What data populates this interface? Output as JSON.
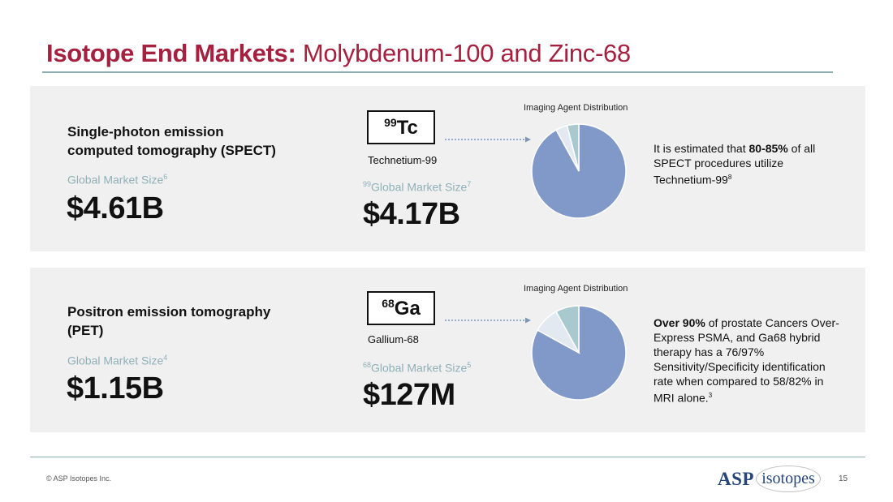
{
  "title": {
    "bold": "Isotope End Markets:",
    "rest": "Molybdenum-100 and Zinc-68"
  },
  "rows": [
    {
      "heading_line1": "Single-photon emission",
      "heading_line2": "computed tomography (SPECT)",
      "global_label": "Global Market Size",
      "global_ref": "6",
      "global_value": "$4.61B",
      "isotope_mass": "99",
      "isotope_symbol": "Tc",
      "isotope_name": "Technetium-99",
      "isotope_market_label": "Global Market Size",
      "isotope_market_ref": "7",
      "isotope_market_value": "$4.17B",
      "chart_title": "Imaging Agent Distribution",
      "note_pre": "It is estimated that ",
      "note_bold": "80-85%",
      "note_post": " of all SPECT procedures utilize Technetium-99",
      "note_ref": "8"
    },
    {
      "heading_line1": "Positron emission tomography",
      "heading_line2": "(PET)",
      "global_label": "Global Market Size",
      "global_ref": "4",
      "global_value": "$1.15B",
      "isotope_mass": "68",
      "isotope_symbol": "Ga",
      "isotope_name": "Gallium-68",
      "isotope_market_label": "Global Market Size",
      "isotope_market_ref": "5",
      "isotope_market_value": "$127M",
      "chart_title": "Imaging Agent Distribution",
      "note_bold": "Over 90%",
      "note_post": " of prostate Cancers Over-Express PSMA, and Ga68 hybrid therapy has a 76/97% Sensitivity/Specificity identification rate when compared to 58/82% in MRI alone.",
      "note_ref": "3"
    }
  ],
  "chart_data": [
    {
      "type": "pie",
      "title": "Imaging Agent Distribution",
      "values": [
        92,
        4,
        4
      ],
      "colors": [
        "#8199c9",
        "#e2e9f1",
        "#a8c9ce"
      ]
    },
    {
      "type": "pie",
      "title": "Imaging Agent Distribution",
      "values": [
        83,
        9,
        8
      ],
      "colors": [
        "#8199c9",
        "#e2e9f1",
        "#a8c9ce"
      ]
    }
  ],
  "footer": {
    "copyright": "© ASP Isotopes Inc.",
    "page": "15"
  },
  "logo": {
    "asp": "ASP",
    "isotopes": "isotopes"
  }
}
